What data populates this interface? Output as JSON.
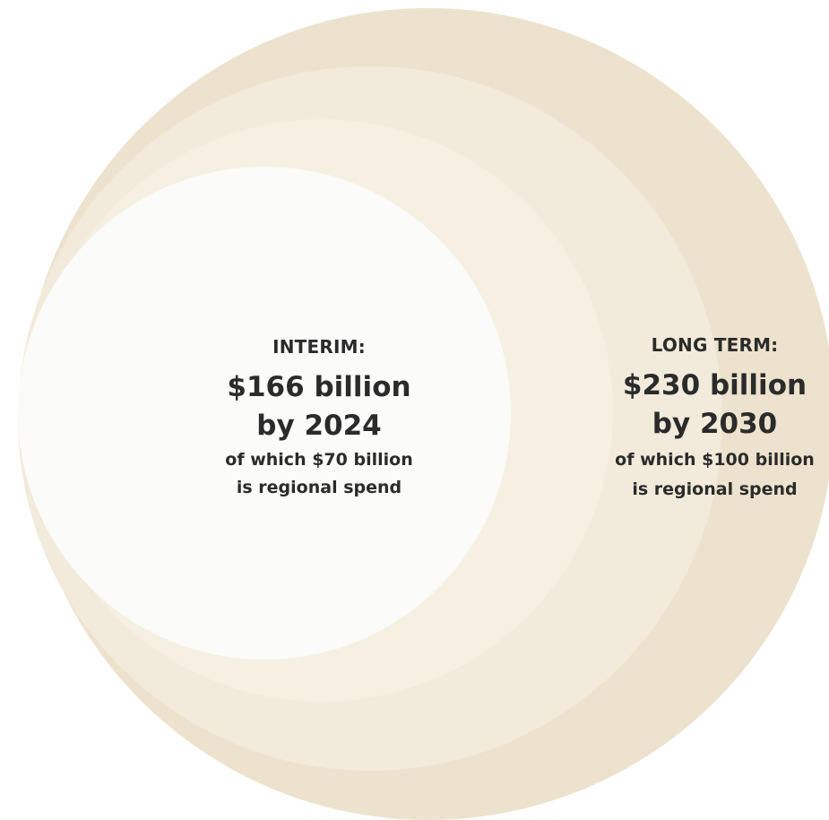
{
  "diagram": {
    "colors": {
      "ring_outer": "#ede2cd",
      "ring_2": "#f2eadb",
      "ring_3": "#f6f0e2",
      "ring_inner": "#fbfbf9"
    },
    "interim": {
      "heading": "INTERIM:",
      "amount": "$166 billion",
      "year": "by 2024",
      "detail_line1": "of which $70 billion",
      "detail_line2": "is regional spend"
    },
    "long_term": {
      "heading": "LONG TERM:",
      "amount": "$230 billion",
      "year": "by 2030",
      "detail_line1": "of which $100 billion",
      "detail_line2": "is regional spend"
    }
  }
}
